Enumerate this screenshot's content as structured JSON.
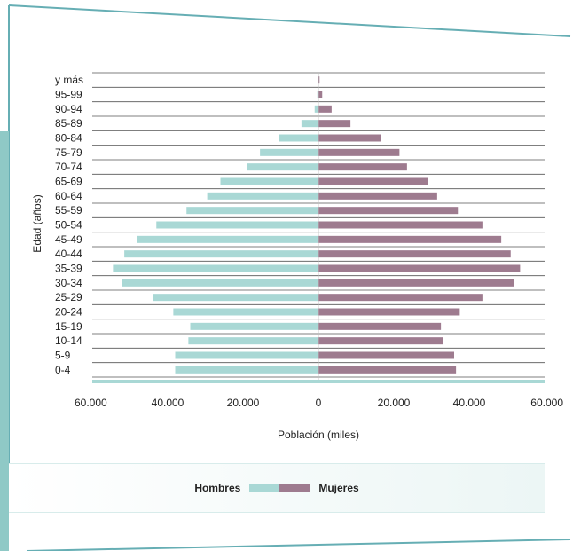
{
  "colors": {
    "frame": "#66aeb4",
    "hombres": "#a9d8d5",
    "mujeres": "#9e7b8f",
    "axis": "#a9d8d5",
    "grid": "#555555"
  },
  "chart_data": {
    "type": "bar",
    "orientation": "horizontal",
    "subtype": "population-pyramid",
    "xlabel": "Población (miles)",
    "ylabel": "Edad (años)",
    "xlim": [
      -60000,
      60000
    ],
    "x_ticks": [
      "60.000",
      "40.000",
      "20.000",
      "0",
      "20.000",
      "40.000",
      "60.000"
    ],
    "categories": [
      "0-4",
      "5-9",
      "10-14",
      "15-19",
      "20-24",
      "25-29",
      "30-34",
      "35-39",
      "40-44",
      "45-49",
      "50-54",
      "55-59",
      "60-64",
      "65-69",
      "70-74",
      "75-79",
      "80-84",
      "85-89",
      "90-94",
      "95-99",
      "y más"
    ],
    "series": [
      {
        "name": "Hombres",
        "values": [
          38000,
          38000,
          34500,
          34000,
          38500,
          44000,
          52000,
          54500,
          51500,
          48000,
          43000,
          35000,
          29500,
          26000,
          19000,
          15500,
          10500,
          4500,
          1000,
          300,
          100
        ]
      },
      {
        "name": "Mujeres",
        "values": [
          36500,
          36000,
          33000,
          32500,
          37500,
          43500,
          52000,
          53500,
          51000,
          48500,
          43500,
          37000,
          31500,
          29000,
          23500,
          21500,
          16500,
          8500,
          3500,
          1000,
          300
        ]
      }
    ],
    "legend": "bottom-center",
    "grid": true
  }
}
